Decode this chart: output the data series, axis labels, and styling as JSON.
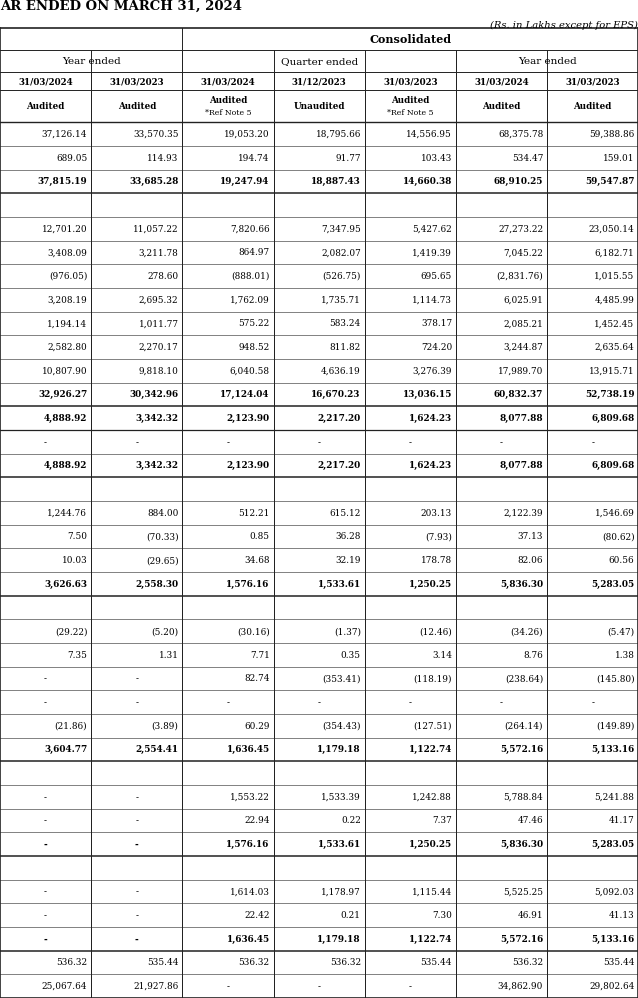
{
  "title": "AR ENDED ON MARCH 31, 2024",
  "subtitle": "(Rs. in Lakhs except for EPS)",
  "col_headers_date": [
    "31/03/2024",
    "31/03/2023",
    "31/03/2024",
    "31/12/2023",
    "31/03/2023",
    "31/03/2024",
    "31/03/2023"
  ],
  "col_headers_audit": [
    "Audited",
    "Audited",
    "Audited",
    "Unaudited",
    "Audited",
    "Audited",
    "Audited"
  ],
  "col_headers_ref": [
    "",
    "",
    "*Ref Note 5",
    "",
    "*Ref Note 5",
    "",
    ""
  ],
  "rows": [
    [
      "37,126.14",
      "33,570.35",
      "19,053.20",
      "18,795.66",
      "14,556.95",
      "68,375.78",
      "59,388.86"
    ],
    [
      "689.05",
      "114.93",
      "194.74",
      "91.77",
      "103.43",
      "534.47",
      "159.01"
    ],
    [
      "37,815.19",
      "33,685.28",
      "19,247.94",
      "18,887.43",
      "14,660.38",
      "68,910.25",
      "59,547.87"
    ],
    [
      "",
      "",
      "",
      "",
      "",
      "",
      ""
    ],
    [
      "12,701.20",
      "11,057.22",
      "7,820.66",
      "7,347.95",
      "5,427.62",
      "27,273.22",
      "23,050.14"
    ],
    [
      "3,408.09",
      "3,211.78",
      "864.97",
      "2,082.07",
      "1,419.39",
      "7,045.22",
      "6,182.71"
    ],
    [
      "(976.05)",
      "278.60",
      "(888.01)",
      "(526.75)",
      "695.65",
      "(2,831.76)",
      "1,015.55"
    ],
    [
      "3,208.19",
      "2,695.32",
      "1,762.09",
      "1,735.71",
      "1,114.73",
      "6,025.91",
      "4,485.99"
    ],
    [
      "1,194.14",
      "1,011.77",
      "575.22",
      "583.24",
      "378.17",
      "2,085.21",
      "1,452.45"
    ],
    [
      "2,582.80",
      "2,270.17",
      "948.52",
      "811.82",
      "724.20",
      "3,244.87",
      "2,635.64"
    ],
    [
      "10,807.90",
      "9,818.10",
      "6,040.58",
      "4,636.19",
      "3,276.39",
      "17,989.70",
      "13,915.71"
    ],
    [
      "32,926.27",
      "30,342.96",
      "17,124.04",
      "16,670.23",
      "13,036.15",
      "60,832.37",
      "52,738.19"
    ],
    [
      "4,888.92",
      "3,342.32",
      "2,123.90",
      "2,217.20",
      "1,624.23",
      "8,077.88",
      "6,809.68"
    ],
    [
      "-",
      "-",
      "-",
      "-",
      "-",
      "-",
      "-"
    ],
    [
      "4,888.92",
      "3,342.32",
      "2,123.90",
      "2,217.20",
      "1,624.23",
      "8,077.88",
      "6,809.68"
    ],
    [
      "",
      "",
      "",
      "",
      "",
      "",
      ""
    ],
    [
      "1,244.76",
      "884.00",
      "512.21",
      "615.12",
      "203.13",
      "2,122.39",
      "1,546.69"
    ],
    [
      "7.50",
      "(70.33)",
      "0.85",
      "36.28",
      "(7.93)",
      "37.13",
      "(80.62)"
    ],
    [
      "10.03",
      "(29.65)",
      "34.68",
      "32.19",
      "178.78",
      "82.06",
      "60.56"
    ],
    [
      "3,626.63",
      "2,558.30",
      "1,576.16",
      "1,533.61",
      "1,250.25",
      "5,836.30",
      "5,283.05"
    ],
    [
      "",
      "",
      "",
      "",
      "",
      "",
      ""
    ],
    [
      "(29.22)",
      "(5.20)",
      "(30.16)",
      "(1.37)",
      "(12.46)",
      "(34.26)",
      "(5.47)"
    ],
    [
      "7.35",
      "1.31",
      "7.71",
      "0.35",
      "3.14",
      "8.76",
      "1.38"
    ],
    [
      "-",
      "-",
      "82.74",
      "(353.41)",
      "(118.19)",
      "(238.64)",
      "(145.80)"
    ],
    [
      "-",
      "-",
      "-",
      "-",
      "-",
      "-",
      "-"
    ],
    [
      "(21.86)",
      "(3.89)",
      "60.29",
      "(354.43)",
      "(127.51)",
      "(264.14)",
      "(149.89)"
    ],
    [
      "3,604.77",
      "2,554.41",
      "1,636.45",
      "1,179.18",
      "1,122.74",
      "5,572.16",
      "5,133.16"
    ],
    [
      "",
      "",
      "",
      "",
      "",
      "",
      ""
    ],
    [
      "-",
      "-",
      "1,553.22",
      "1,533.39",
      "1,242.88",
      "5,788.84",
      "5,241.88"
    ],
    [
      "-",
      "-",
      "22.94",
      "0.22",
      "7.37",
      "47.46",
      "41.17"
    ],
    [
      "-",
      "-",
      "1,576.16",
      "1,533.61",
      "1,250.25",
      "5,836.30",
      "5,283.05"
    ],
    [
      "",
      "",
      "",
      "",
      "",
      "",
      ""
    ],
    [
      "-",
      "-",
      "1,614.03",
      "1,178.97",
      "1,115.44",
      "5,525.25",
      "5,092.03"
    ],
    [
      "-",
      "-",
      "22.42",
      "0.21",
      "7.30",
      "46.91",
      "41.13"
    ],
    [
      "-",
      "-",
      "1,636.45",
      "1,179.18",
      "1,122.74",
      "5,572.16",
      "5,133.16"
    ],
    [
      "536.32",
      "535.44",
      "536.32",
      "536.32",
      "535.44",
      "536.32",
      "535.44"
    ],
    [
      "25,067.64",
      "21,927.86",
      "-",
      "-",
      "-",
      "34,862.90",
      "29,802.64"
    ]
  ],
  "bold_rows": [
    2,
    11,
    12,
    14,
    19,
    26,
    30,
    34
  ],
  "double_border_rows": [
    2,
    11,
    14,
    19,
    26,
    30,
    34
  ],
  "bg_color": "#ffffff",
  "text_color": "#000000"
}
